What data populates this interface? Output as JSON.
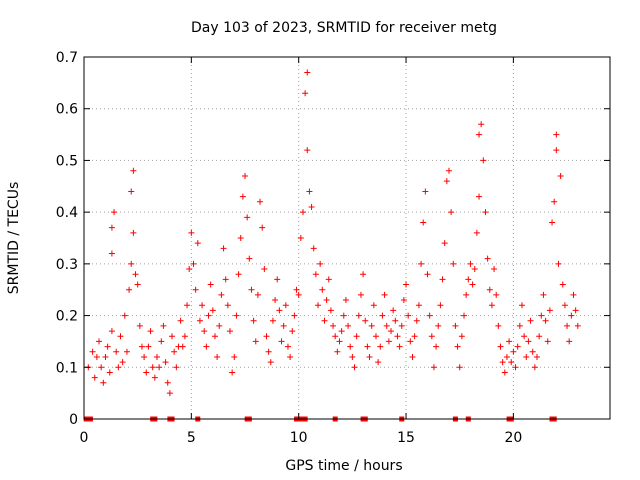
{
  "chart_data": {
    "type": "scatter",
    "title": "Day 103 of 2023, SRMTID for receiver metg",
    "xlabel": "GPS time / hours",
    "ylabel": "SRMTID / TECUs",
    "xlim": [
      0,
      24.5
    ],
    "ylim": [
      0,
      0.7
    ],
    "grid": true,
    "marker": "+",
    "color": "#ff0000",
    "xticks": [
      0,
      5,
      10,
      15,
      20
    ],
    "xtick_labels": [
      "0",
      "5",
      "10",
      "15",
      "20"
    ],
    "yticks": [
      0,
      0.1,
      0.2,
      0.3,
      0.4,
      0.5,
      0.6,
      0.7
    ],
    "ytick_labels": [
      "0",
      "0.1",
      "0.2",
      "0.3",
      "0.4",
      "0.5",
      "0.6",
      "0.7"
    ],
    "series": [
      {
        "name": "SRMTID",
        "points": [
          [
            0.2,
            0.1
          ],
          [
            0.4,
            0.13
          ],
          [
            0.5,
            0.08
          ],
          [
            0.6,
            0.12
          ],
          [
            0.7,
            0.15
          ],
          [
            0.8,
            0.1
          ],
          [
            0.9,
            0.07
          ],
          [
            1.0,
            0.12
          ],
          [
            1.1,
            0.14
          ],
          [
            1.2,
            0.09
          ],
          [
            1.3,
            0.17
          ],
          [
            1.3,
            0.32
          ],
          [
            1.3,
            0.37
          ],
          [
            1.4,
            0.4
          ],
          [
            1.5,
            0.13
          ],
          [
            1.6,
            0.1
          ],
          [
            1.7,
            0.16
          ],
          [
            1.8,
            0.11
          ],
          [
            1.9,
            0.2
          ],
          [
            2.0,
            0.13
          ],
          [
            2.1,
            0.25
          ],
          [
            2.2,
            0.3
          ],
          [
            2.2,
            0.44
          ],
          [
            2.3,
            0.48
          ],
          [
            2.3,
            0.36
          ],
          [
            2.4,
            0.28
          ],
          [
            2.5,
            0.26
          ],
          [
            2.6,
            0.18
          ],
          [
            2.7,
            0.14
          ],
          [
            2.8,
            0.12
          ],
          [
            2.9,
            0.09
          ],
          [
            3.0,
            0.14
          ],
          [
            3.1,
            0.17
          ],
          [
            3.2,
            0.1
          ],
          [
            3.3,
            0.08
          ],
          [
            3.4,
            0.12
          ],
          [
            3.5,
            0.1
          ],
          [
            3.6,
            0.15
          ],
          [
            3.7,
            0.18
          ],
          [
            3.8,
            0.11
          ],
          [
            3.9,
            0.07
          ],
          [
            4.0,
            0.05
          ],
          [
            4.1,
            0.16
          ],
          [
            4.2,
            0.13
          ],
          [
            4.3,
            0.1
          ],
          [
            4.4,
            0.14
          ],
          [
            4.5,
            0.19
          ],
          [
            4.6,
            0.14
          ],
          [
            4.7,
            0.16
          ],
          [
            4.8,
            0.22
          ],
          [
            4.9,
            0.29
          ],
          [
            5.0,
            0.36
          ],
          [
            5.1,
            0.3
          ],
          [
            5.2,
            0.25
          ],
          [
            5.3,
            0.34
          ],
          [
            5.4,
            0.19
          ],
          [
            5.5,
            0.22
          ],
          [
            5.6,
            0.17
          ],
          [
            5.7,
            0.14
          ],
          [
            5.8,
            0.2
          ],
          [
            5.9,
            0.26
          ],
          [
            6.0,
            0.21
          ],
          [
            6.1,
            0.16
          ],
          [
            6.2,
            0.12
          ],
          [
            6.3,
            0.18
          ],
          [
            6.4,
            0.24
          ],
          [
            6.5,
            0.33
          ],
          [
            6.6,
            0.27
          ],
          [
            6.7,
            0.22
          ],
          [
            6.8,
            0.17
          ],
          [
            6.9,
            0.09
          ],
          [
            7.0,
            0.12
          ],
          [
            7.1,
            0.2
          ],
          [
            7.2,
            0.28
          ],
          [
            7.3,
            0.35
          ],
          [
            7.4,
            0.43
          ],
          [
            7.5,
            0.47
          ],
          [
            7.6,
            0.39
          ],
          [
            7.7,
            0.31
          ],
          [
            7.8,
            0.25
          ],
          [
            7.9,
            0.19
          ],
          [
            8.0,
            0.15
          ],
          [
            8.1,
            0.24
          ],
          [
            8.2,
            0.42
          ],
          [
            8.3,
            0.37
          ],
          [
            8.4,
            0.29
          ],
          [
            8.5,
            0.16
          ],
          [
            8.6,
            0.13
          ],
          [
            8.7,
            0.11
          ],
          [
            8.8,
            0.19
          ],
          [
            8.9,
            0.23
          ],
          [
            9.0,
            0.27
          ],
          [
            9.1,
            0.21
          ],
          [
            9.2,
            0.15
          ],
          [
            9.3,
            0.18
          ],
          [
            9.4,
            0.22
          ],
          [
            9.5,
            0.14
          ],
          [
            9.6,
            0.12
          ],
          [
            9.7,
            0.17
          ],
          [
            9.8,
            0.2
          ],
          [
            9.9,
            0.25
          ],
          [
            10.0,
            0.24
          ],
          [
            10.1,
            0.35
          ],
          [
            10.2,
            0.4
          ],
          [
            10.3,
            0.63
          ],
          [
            10.4,
            0.67
          ],
          [
            10.4,
            0.52
          ],
          [
            10.5,
            0.44
          ],
          [
            10.6,
            0.41
          ],
          [
            10.7,
            0.33
          ],
          [
            10.8,
            0.28
          ],
          [
            10.9,
            0.22
          ],
          [
            11.0,
            0.3
          ],
          [
            11.1,
            0.25
          ],
          [
            11.2,
            0.19
          ],
          [
            11.3,
            0.23
          ],
          [
            11.4,
            0.27
          ],
          [
            11.5,
            0.21
          ],
          [
            11.6,
            0.18
          ],
          [
            11.7,
            0.16
          ],
          [
            11.8,
            0.13
          ],
          [
            11.9,
            0.15
          ],
          [
            12.0,
            0.17
          ],
          [
            12.1,
            0.2
          ],
          [
            12.2,
            0.23
          ],
          [
            12.3,
            0.18
          ],
          [
            12.4,
            0.14
          ],
          [
            12.5,
            0.12
          ],
          [
            12.6,
            0.1
          ],
          [
            12.7,
            0.16
          ],
          [
            12.8,
            0.2
          ],
          [
            12.9,
            0.24
          ],
          [
            13.0,
            0.28
          ],
          [
            13.1,
            0.19
          ],
          [
            13.2,
            0.14
          ],
          [
            13.3,
            0.12
          ],
          [
            13.4,
            0.18
          ],
          [
            13.5,
            0.22
          ],
          [
            13.6,
            0.16
          ],
          [
            13.7,
            0.11
          ],
          [
            13.8,
            0.14
          ],
          [
            13.9,
            0.2
          ],
          [
            14.0,
            0.24
          ],
          [
            14.1,
            0.18
          ],
          [
            14.2,
            0.15
          ],
          [
            14.3,
            0.17
          ],
          [
            14.4,
            0.21
          ],
          [
            14.5,
            0.19
          ],
          [
            14.6,
            0.16
          ],
          [
            14.7,
            0.14
          ],
          [
            14.8,
            0.18
          ],
          [
            14.9,
            0.23
          ],
          [
            15.0,
            0.26
          ],
          [
            15.1,
            0.2
          ],
          [
            15.2,
            0.15
          ],
          [
            15.3,
            0.12
          ],
          [
            15.4,
            0.16
          ],
          [
            15.5,
            0.19
          ],
          [
            15.6,
            0.22
          ],
          [
            15.7,
            0.3
          ],
          [
            15.8,
            0.38
          ],
          [
            15.9,
            0.44
          ],
          [
            16.0,
            0.28
          ],
          [
            16.1,
            0.2
          ],
          [
            16.2,
            0.16
          ],
          [
            16.3,
            0.1
          ],
          [
            16.4,
            0.14
          ],
          [
            16.5,
            0.18
          ],
          [
            16.6,
            0.22
          ],
          [
            16.7,
            0.27
          ],
          [
            16.8,
            0.34
          ],
          [
            16.9,
            0.46
          ],
          [
            17.0,
            0.48
          ],
          [
            17.1,
            0.4
          ],
          [
            17.2,
            0.3
          ],
          [
            17.3,
            0.18
          ],
          [
            17.4,
            0.14
          ],
          [
            17.5,
            0.1
          ],
          [
            17.6,
            0.16
          ],
          [
            17.7,
            0.2
          ],
          [
            17.8,
            0.24
          ],
          [
            17.9,
            0.27
          ],
          [
            18.0,
            0.3
          ],
          [
            18.1,
            0.26
          ],
          [
            18.2,
            0.29
          ],
          [
            18.3,
            0.36
          ],
          [
            18.4,
            0.43
          ],
          [
            18.4,
            0.55
          ],
          [
            18.5,
            0.57
          ],
          [
            18.6,
            0.5
          ],
          [
            18.7,
            0.4
          ],
          [
            18.8,
            0.31
          ],
          [
            18.9,
            0.25
          ],
          [
            19.0,
            0.22
          ],
          [
            19.1,
            0.29
          ],
          [
            19.2,
            0.24
          ],
          [
            19.3,
            0.18
          ],
          [
            19.4,
            0.14
          ],
          [
            19.5,
            0.11
          ],
          [
            19.6,
            0.09
          ],
          [
            19.7,
            0.12
          ],
          [
            19.8,
            0.15
          ],
          [
            19.9,
            0.11
          ],
          [
            20.0,
            0.13
          ],
          [
            20.1,
            0.1
          ],
          [
            20.2,
            0.14
          ],
          [
            20.3,
            0.18
          ],
          [
            20.4,
            0.22
          ],
          [
            20.5,
            0.16
          ],
          [
            20.6,
            0.12
          ],
          [
            20.7,
            0.15
          ],
          [
            20.8,
            0.19
          ],
          [
            20.9,
            0.13
          ],
          [
            21.0,
            0.1
          ],
          [
            21.1,
            0.12
          ],
          [
            21.2,
            0.16
          ],
          [
            21.3,
            0.2
          ],
          [
            21.4,
            0.24
          ],
          [
            21.5,
            0.19
          ],
          [
            21.6,
            0.15
          ],
          [
            21.7,
            0.21
          ],
          [
            21.8,
            0.38
          ],
          [
            21.9,
            0.42
          ],
          [
            22.0,
            0.55
          ],
          [
            22.0,
            0.52
          ],
          [
            22.1,
            0.3
          ],
          [
            22.2,
            0.47
          ],
          [
            22.3,
            0.26
          ],
          [
            22.4,
            0.22
          ],
          [
            22.5,
            0.18
          ],
          [
            22.6,
            0.15
          ],
          [
            22.7,
            0.2
          ],
          [
            22.8,
            0.24
          ],
          [
            22.9,
            0.21
          ],
          [
            23.0,
            0.18
          ]
        ]
      }
    ],
    "baseline_markers": [
      0.1,
      0.2,
      0.3,
      3.2,
      3.3,
      4.0,
      4.1,
      5.3,
      7.6,
      7.7,
      9.9,
      10.0,
      10.2,
      10.3,
      11.7,
      13.0,
      13.1,
      14.8,
      17.3,
      17.9,
      19.8,
      19.9,
      21.8,
      21.9
    ]
  }
}
